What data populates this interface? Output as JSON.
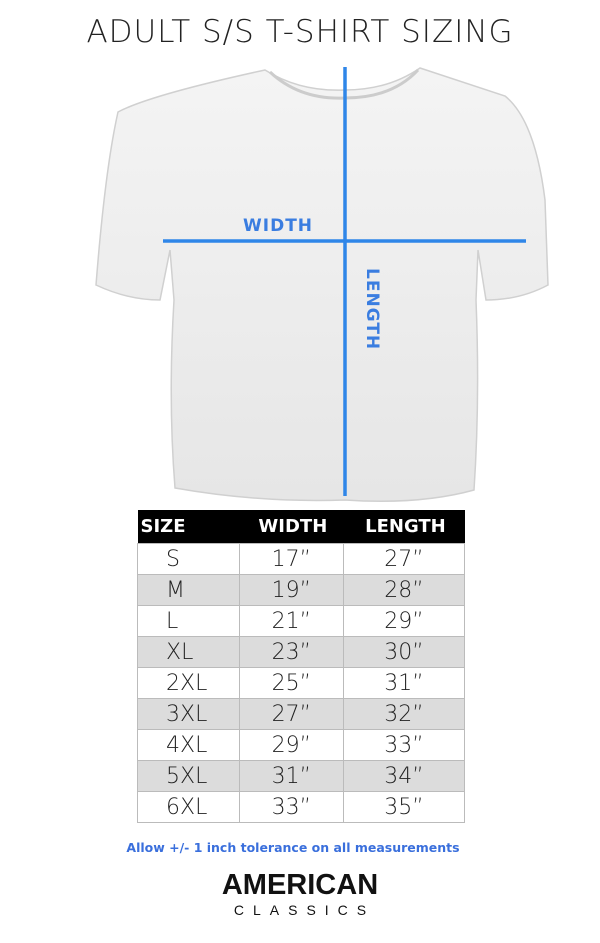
{
  "title": "ADULT S/S T-SHIRT SIZING",
  "diagram": {
    "width_label": "WIDTH",
    "length_label": "LENGTH",
    "accent_color": "#2f86e8"
  },
  "table": {
    "headers": [
      "SIZE",
      "WIDTH",
      "LENGTH"
    ],
    "rows": [
      [
        "S",
        "17”",
        "27”"
      ],
      [
        "M",
        "19”",
        "28”"
      ],
      [
        "L",
        "21”",
        "29”"
      ],
      [
        "XL",
        "23”",
        "30”"
      ],
      [
        "2XL",
        "25”",
        "31”"
      ],
      [
        "3XL",
        "27”",
        "32”"
      ],
      [
        "4XL",
        "29”",
        "33”"
      ],
      [
        "5XL",
        "31”",
        "34”"
      ],
      [
        "6XL",
        "33”",
        "35”"
      ]
    ]
  },
  "note": "Allow +/- 1 inch tolerance on all measurements",
  "logo": {
    "line1": "AMERICAN",
    "line2": "CLASSICS"
  }
}
